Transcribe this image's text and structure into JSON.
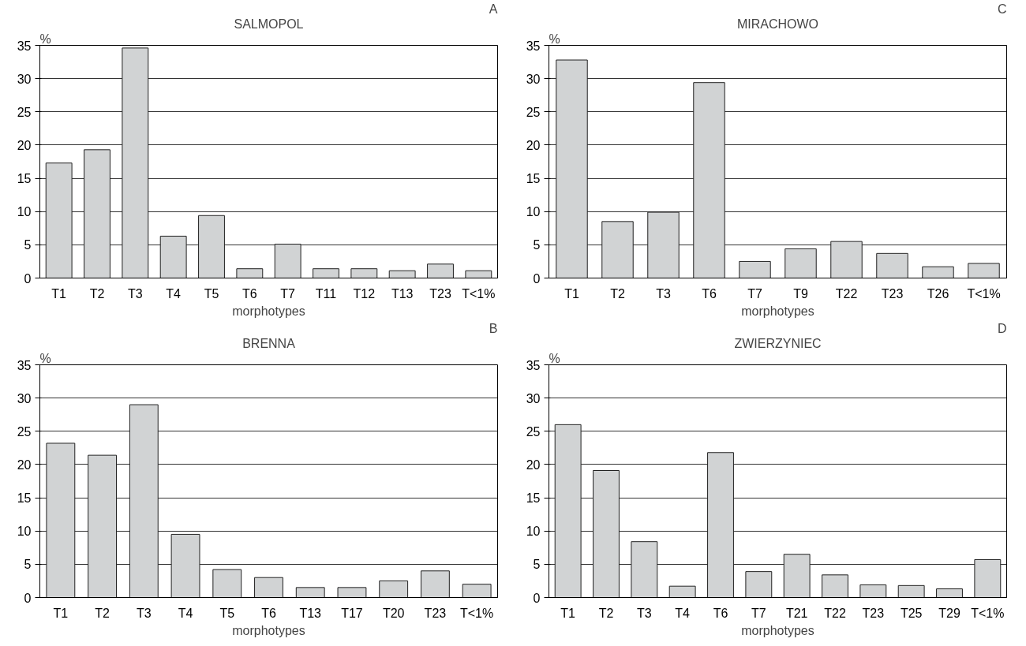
{
  "chart_data": [
    {
      "type": "bar",
      "title": "SALMOPOL",
      "xlabel": "morphotypes",
      "ylabel": "%",
      "annotations": [
        "A"
      ],
      "categories": [
        "T1",
        "T2",
        "T3",
        "T4",
        "T5",
        "T6",
        "T7",
        "T11",
        "T12",
        "T13",
        "T23",
        "T<1%"
      ],
      "values": [
        17.3,
        19.3,
        34.6,
        6.3,
        9.4,
        1.4,
        5.1,
        1.4,
        1.4,
        1.1,
        2.1,
        1.1
      ],
      "color": "#d1d3d4",
      "ylim": [
        0,
        35
      ],
      "yticks": [
        0,
        5,
        10,
        15,
        20,
        25,
        30,
        35
      ],
      "grid": "y"
    },
    {
      "type": "bar",
      "title": "MIRACHOWO",
      "xlabel": "morphotypes",
      "ylabel": "%",
      "annotations": [
        "C"
      ],
      "categories": [
        "T1",
        "T2",
        "T3",
        "T6",
        "T7",
        "T9",
        "T22",
        "T23",
        "T26",
        "T<1%"
      ],
      "values": [
        32.8,
        8.5,
        9.9,
        29.4,
        2.5,
        4.4,
        5.5,
        3.7,
        1.7,
        2.2
      ],
      "color": "#d1d3d4",
      "ylim": [
        0,
        35
      ],
      "yticks": [
        0,
        5,
        10,
        15,
        20,
        25,
        30,
        35
      ],
      "grid": "y"
    },
    {
      "type": "bar",
      "title": "BRENNA",
      "xlabel": "morphotypes",
      "ylabel": "%",
      "annotations": [
        "B"
      ],
      "categories": [
        "T1",
        "T2",
        "T3",
        "T4",
        "T5",
        "T6",
        "T13",
        "T17",
        "T20",
        "T23",
        "T<1%"
      ],
      "values": [
        23.2,
        21.4,
        29.0,
        9.5,
        4.2,
        3.0,
        1.5,
        1.5,
        2.5,
        4.0,
        2.0
      ],
      "color": "#d1d3d4",
      "ylim": [
        0,
        35
      ],
      "yticks": [
        0,
        5,
        10,
        15,
        20,
        25,
        30,
        35
      ],
      "grid": "y"
    },
    {
      "type": "bar",
      "title": "ZWIERZYNIEC",
      "xlabel": "morphotypes",
      "ylabel": "%",
      "annotations": [
        "D"
      ],
      "categories": [
        "T1",
        "T2",
        "T3",
        "T4",
        "T6",
        "T7",
        "T21",
        "T22",
        "T23",
        "T25",
        "T29",
        "T<1%"
      ],
      "values": [
        26.0,
        19.1,
        8.4,
        1.7,
        21.8,
        3.9,
        6.5,
        3.4,
        1.9,
        1.8,
        1.3,
        5.7
      ],
      "color": "#d1d3d4",
      "ylim": [
        0,
        35
      ],
      "yticks": [
        0,
        5,
        10,
        15,
        20,
        25,
        30,
        35
      ],
      "grid": "y"
    }
  ]
}
